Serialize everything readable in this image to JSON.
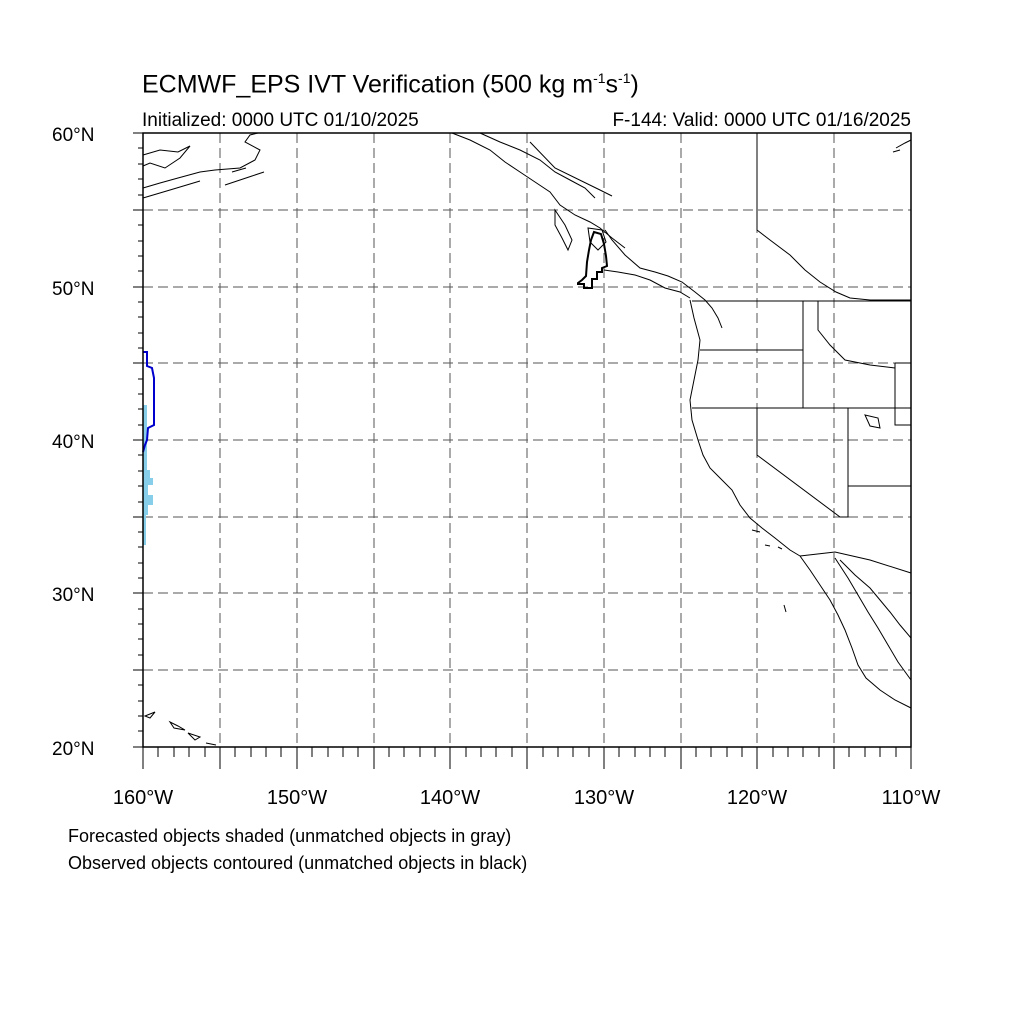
{
  "title": {
    "main": "ECMWF_EPS IVT Verification (500 kg m",
    "sup1": "-1",
    "mid": "s",
    "sup2": "-1",
    "end": ")"
  },
  "initialized": "Initialized: 0000 UTC 01/10/2025",
  "valid": "F-144: Valid: 0000 UTC 01/16/2025",
  "axes": {
    "lat_labels": [
      "60°N",
      "50°N",
      "40°N",
      "30°N",
      "20°N"
    ],
    "lon_labels": [
      "160°W",
      "150°W",
      "140°W",
      "130°W",
      "120°W",
      "110°W"
    ],
    "lat_range": [
      20,
      60
    ],
    "lon_range": [
      -160,
      -110
    ],
    "grid": "dashed every 5 degrees"
  },
  "footnotes": [
    "Forecasted objects shaded (unmatched objects in gray)",
    "Observed objects contoured (unmatched objects in black)"
  ],
  "colors": {
    "forecast_matched_fill": "#87ceeb",
    "observed_matched_contour": "#0000cc",
    "observed_unmatched_contour": "#000000",
    "coastline": "#000000",
    "grid": "#555555"
  }
}
